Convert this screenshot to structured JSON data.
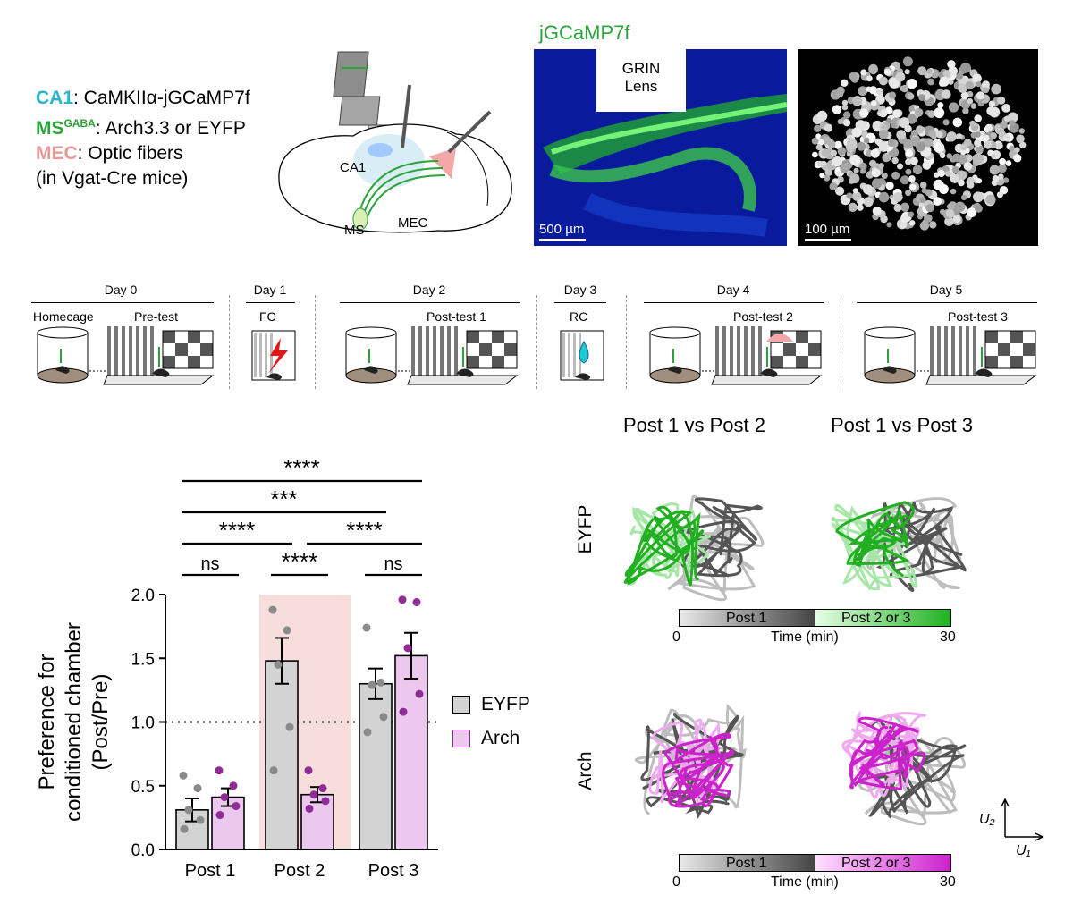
{
  "injection_legend": [
    {
      "region": "CA1",
      "sup": "",
      "text": ": CaMKIIα-jGCaMP7f",
      "color": "#29b6c8"
    },
    {
      "region": "MS",
      "sup": "GABA",
      "text": ": Arch3.3 or EYFP",
      "color": "#2aa33a"
    },
    {
      "region": "MEC",
      "sup": "",
      "text": ": Optic fibers",
      "color": "#e59a98"
    },
    {
      "region": "",
      "sup": "",
      "text": "(in Vgat-Cre mice)",
      "color": "#000000"
    }
  ],
  "brain_labels": {
    "ca1": "CA1",
    "ms": "MS",
    "mec": "MEC"
  },
  "histology": {
    "title": "jGCaMP7f",
    "lens_label_1": "GRIN",
    "lens_label_2": "Lens",
    "scale_left": "500 µm",
    "scale_right": "100 µm"
  },
  "timeline": {
    "days": [
      "Day 0",
      "Day 1",
      "Day 2",
      "Day 3",
      "Day 4",
      "Day 5"
    ],
    "sessions": {
      "homecage": "Homecage",
      "pretest": "Pre-test",
      "fc": "FC",
      "post1": "Post-test 1",
      "rc": "RC",
      "post2": "Post-test 2",
      "post3": "Post-test 3"
    }
  },
  "umap": {
    "col_titles": [
      "Post 1 vs Post 2",
      "Post 1 vs Post 3"
    ],
    "row_labels": [
      "EYFP",
      "Arch"
    ],
    "bar_left_label": "Post 1",
    "bar_right_label": "Post 2 or 3",
    "time_start": "0",
    "time_label": "Time (min)",
    "time_end": "30",
    "axis_u1": "U₁",
    "axis_u2": "U₂",
    "colors": {
      "gray": "#555555",
      "green": "#22b022",
      "magenta": "#cc22cc"
    }
  },
  "chart_data": {
    "type": "bar",
    "categories": [
      "Post 1",
      "Post 2",
      "Post 3"
    ],
    "series": [
      {
        "name": "EYFP",
        "color": "#d3d3d3",
        "dot_color": "#8a8a8a",
        "values": [
          0.31,
          1.48,
          1.3
        ],
        "sem": [
          0.09,
          0.18,
          0.12
        ],
        "points": [
          [
            0.16,
            0.23,
            0.31,
            0.48,
            0.58
          ],
          [
            0.62,
            0.96,
            1.45,
            1.72,
            1.88
          ],
          [
            0.92,
            1.04,
            1.29,
            1.31,
            1.74
          ]
        ]
      },
      {
        "name": "Arch",
        "color": "#ecc8ee",
        "dot_color": "#8e2d96",
        "values": [
          0.41,
          0.43,
          1.52
        ],
        "sem": [
          0.07,
          0.06,
          0.18
        ],
        "points": [
          [
            0.27,
            0.34,
            0.41,
            0.5,
            0.62
          ],
          [
            0.32,
            0.38,
            0.43,
            0.48,
            0.62
          ],
          [
            1.08,
            1.22,
            1.58,
            1.94,
            1.96
          ]
        ]
      }
    ],
    "ylabel_line1": "Preference for",
    "ylabel_line2": "conditioned chamber",
    "ylabel_line3": "(Post/Pre)",
    "ylim": [
      0,
      2.0
    ],
    "yticks": [
      "0.0",
      "0.5",
      "1.0",
      "1.5",
      "2.0"
    ],
    "reference_line": 1.0,
    "highlight_category": "Post 2",
    "highlight_color": "#f7dedd",
    "significance": [
      {
        "label": "****",
        "from": "Post 1 EYFP",
        "to": "Post 3 Arch"
      },
      {
        "label": "***",
        "from": "Post 1 EYFP",
        "to": "Post 3 EYFP"
      },
      {
        "label": "****",
        "from": "Post 1 EYFP",
        "to": "Post 2 EYFP"
      },
      {
        "label": "****",
        "from": "Post 2 Arch",
        "to": "Post 3 Arch"
      },
      {
        "label": "ns",
        "from": "Post 1 EYFP",
        "to": "Post 1 Arch"
      },
      {
        "label": "****",
        "from": "Post 2 EYFP",
        "to": "Post 2 Arch"
      },
      {
        "label": "ns",
        "from": "Post 3 EYFP",
        "to": "Post 3 Arch"
      }
    ]
  }
}
